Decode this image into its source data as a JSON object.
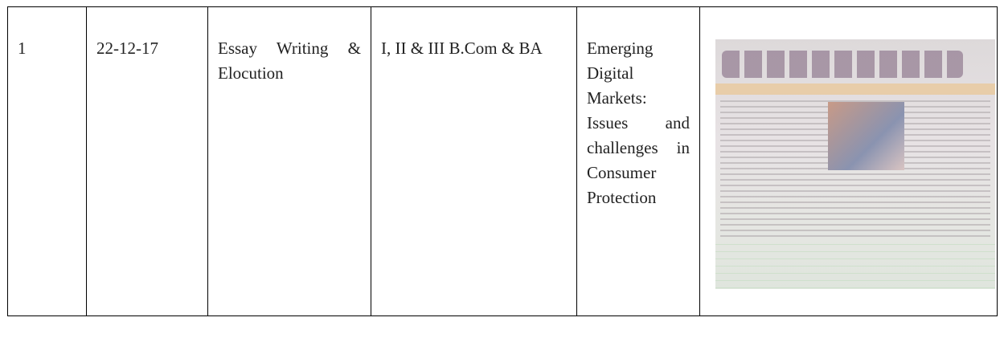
{
  "table": {
    "rows": [
      [
        "1",
        "22-12-17",
        "Essay Writing & Elocution",
        "I, II & III B.Com & BA",
        "Emerging Digital Markets: Issues and challenges in Consumer Protection"
      ]
    ]
  }
}
